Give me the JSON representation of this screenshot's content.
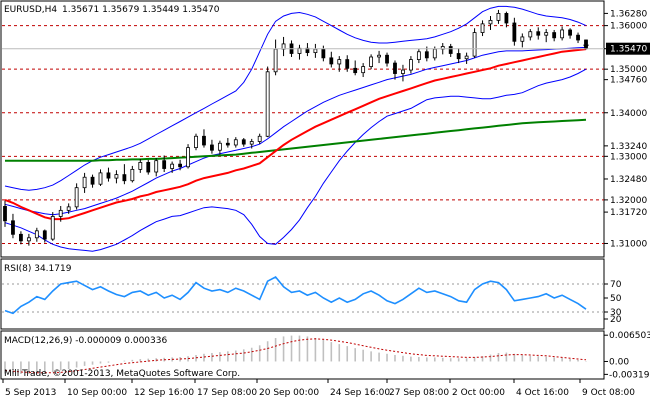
{
  "window": {
    "title_label": "EURUSD,H4",
    "ohlc_label": "1.35671 1.35679 1.35449 1.35470",
    "watermark": "Mill Trade, ©2001-2013, MetaQuotes Software Corp."
  },
  "colors": {
    "background": "#ffffff",
    "bollinger": "#0000ff",
    "ema_short": "#ff0000",
    "ema_long": "#008000",
    "level_line": "#c00000",
    "rsi": "#1e8fff",
    "macd_hist": "#c0c0c0",
    "macd_signal": "#c00000",
    "price_marker": "#000000"
  },
  "chart_data": [
    {
      "type": "candlestick",
      "title": "EURUSD,H4",
      "price_labels": [
        "1.36280",
        "1.36000",
        "1.35470",
        "1.35000",
        "1.34760",
        "1.34000",
        "1.33240",
        "1.33000",
        "1.32480",
        "1.32000",
        "1.31720",
        "1.31000"
      ],
      "current_price": 1.3547,
      "horizontal_levels": [
        1.36,
        1.35,
        1.34,
        1.33,
        1.32,
        1.31
      ],
      "ylim": [
        1.3085,
        1.3645
      ],
      "x_labels": [
        "5 Sep 2013",
        "10 Sep 00:00",
        "12 Sep 16:00",
        "17 Sep 08:00",
        "20 Sep 00:00",
        "24 Sep 16:00",
        "27 Sep 08:00",
        "2 Oct 00:00",
        "4 Oct 16:00",
        "9 Oct 08:00"
      ],
      "candles": [
        [
          1.3185,
          1.3198,
          1.3138,
          1.3152
        ],
        [
          1.3152,
          1.3168,
          1.3112,
          1.3121
        ],
        [
          1.3121,
          1.3128,
          1.3098,
          1.3106
        ],
        [
          1.3106,
          1.3122,
          1.3095,
          1.3113
        ],
        [
          1.3113,
          1.3136,
          1.3104,
          1.3129
        ],
        [
          1.3129,
          1.3132,
          1.3102,
          1.311
        ],
        [
          1.311,
          1.3172,
          1.3106,
          1.3162
        ],
        [
          1.3162,
          1.3186,
          1.315,
          1.3176
        ],
        [
          1.3176,
          1.3192,
          1.3168,
          1.3184
        ],
        [
          1.3184,
          1.3238,
          1.3178,
          1.3228
        ],
        [
          1.3228,
          1.3262,
          1.3216,
          1.3252
        ],
        [
          1.3252,
          1.3258,
          1.3228,
          1.3236
        ],
        [
          1.3236,
          1.327,
          1.3232,
          1.3262
        ],
        [
          1.3262,
          1.3274,
          1.3242,
          1.325
        ],
        [
          1.325,
          1.3268,
          1.3238,
          1.3258
        ],
        [
          1.3258,
          1.3282,
          1.3236,
          1.3244
        ],
        [
          1.3244,
          1.3278,
          1.324,
          1.327
        ],
        [
          1.327,
          1.3294,
          1.3262,
          1.3286
        ],
        [
          1.3286,
          1.3292,
          1.3258,
          1.3264
        ],
        [
          1.3264,
          1.3296,
          1.3254,
          1.329
        ],
        [
          1.329,
          1.3302,
          1.3264,
          1.3272
        ],
        [
          1.3272,
          1.3288,
          1.3262,
          1.3282
        ],
        [
          1.3282,
          1.3292,
          1.3268,
          1.3276
        ],
        [
          1.3276,
          1.3328,
          1.3272,
          1.332
        ],
        [
          1.332,
          1.3352,
          1.3314,
          1.3346
        ],
        [
          1.3346,
          1.3362,
          1.332,
          1.3326
        ],
        [
          1.3326,
          1.3338,
          1.3306,
          1.3314
        ],
        [
          1.3314,
          1.3336,
          1.3304,
          1.333
        ],
        [
          1.333,
          1.3342,
          1.332,
          1.3326
        ],
        [
          1.3326,
          1.3344,
          1.332,
          1.3338
        ],
        [
          1.3338,
          1.3342,
          1.3322,
          1.3328
        ],
        [
          1.3328,
          1.334,
          1.3318,
          1.3334
        ],
        [
          1.3334,
          1.3352,
          1.3328,
          1.3346
        ],
        [
          1.3346,
          1.3506,
          1.3344,
          1.3494
        ],
        [
          1.3494,
          1.3568,
          1.3486,
          1.3546
        ],
        [
          1.3546,
          1.3574,
          1.353,
          1.3558
        ],
        [
          1.3558,
          1.3566,
          1.3528,
          1.3536
        ],
        [
          1.3536,
          1.3556,
          1.3522,
          1.3548
        ],
        [
          1.3548,
          1.356,
          1.353,
          1.3538
        ],
        [
          1.3538,
          1.3558,
          1.3526,
          1.3546
        ],
        [
          1.3546,
          1.3554,
          1.3518,
          1.3526
        ],
        [
          1.3526,
          1.354,
          1.3504,
          1.3512
        ],
        [
          1.3512,
          1.353,
          1.3494,
          1.3522
        ],
        [
          1.3522,
          1.3532,
          1.3494,
          1.3502
        ],
        [
          1.3502,
          1.352,
          1.3486,
          1.3492
        ],
        [
          1.3492,
          1.3514,
          1.3482,
          1.3506
        ],
        [
          1.3506,
          1.3534,
          1.35,
          1.3528
        ],
        [
          1.3528,
          1.3542,
          1.3514,
          1.3532
        ],
        [
          1.3532,
          1.3538,
          1.3506,
          1.3514
        ],
        [
          1.3514,
          1.352,
          1.3476,
          1.349
        ],
        [
          1.349,
          1.351,
          1.3472,
          1.3498
        ],
        [
          1.3498,
          1.353,
          1.349,
          1.3522
        ],
        [
          1.3522,
          1.3546,
          1.3514,
          1.354
        ],
        [
          1.354,
          1.3552,
          1.3518,
          1.3526
        ],
        [
          1.3526,
          1.3552,
          1.352,
          1.3546
        ],
        [
          1.3546,
          1.356,
          1.3534,
          1.3552
        ],
        [
          1.3552,
          1.3558,
          1.3528,
          1.3536
        ],
        [
          1.3536,
          1.3548,
          1.3514,
          1.3524
        ],
        [
          1.3524,
          1.3538,
          1.3512,
          1.353
        ],
        [
          1.353,
          1.3594,
          1.3526,
          1.3584
        ],
        [
          1.3584,
          1.3612,
          1.3576,
          1.3604
        ],
        [
          1.3604,
          1.3622,
          1.359,
          1.3612
        ],
        [
          1.3612,
          1.3636,
          1.3604,
          1.3628
        ],
        [
          1.3628,
          1.3632,
          1.3596,
          1.3606
        ],
        [
          1.3606,
          1.3618,
          1.3554,
          1.3564
        ],
        [
          1.3564,
          1.3582,
          1.355,
          1.3574
        ],
        [
          1.3574,
          1.3592,
          1.3566,
          1.3586
        ],
        [
          1.3586,
          1.3596,
          1.3568,
          1.3578
        ],
        [
          1.3578,
          1.3592,
          1.3562,
          1.3584
        ],
        [
          1.3584,
          1.359,
          1.3564,
          1.3572
        ],
        [
          1.3572,
          1.3598,
          1.3566,
          1.359
        ],
        [
          1.359,
          1.3594,
          1.357,
          1.3578
        ],
        [
          1.3578,
          1.3584,
          1.356,
          1.3567
        ],
        [
          1.3567,
          1.3568,
          1.3545,
          1.3547
        ]
      ],
      "bollinger_middle": [
        1.319,
        1.3185,
        1.318,
        1.3175,
        1.3172,
        1.3168,
        1.3166,
        1.3168,
        1.3172,
        1.3176,
        1.318,
        1.3186,
        1.3192,
        1.3198,
        1.3204,
        1.3212,
        1.322,
        1.323,
        1.324,
        1.325,
        1.3258,
        1.3266,
        1.3272,
        1.328,
        1.3288,
        1.3296,
        1.3302,
        1.3306,
        1.331,
        1.3314,
        1.3318,
        1.3322,
        1.3328,
        1.334,
        1.3354,
        1.3368,
        1.338,
        1.3392,
        1.3404,
        1.3414,
        1.3424,
        1.3432,
        1.344,
        1.3446,
        1.3452,
        1.3458,
        1.3464,
        1.347,
        1.3476,
        1.348,
        1.3484,
        1.3488,
        1.3494,
        1.35,
        1.3504,
        1.3508,
        1.3512,
        1.3516,
        1.352,
        1.3526,
        1.3532,
        1.3536,
        1.354,
        1.3542,
        1.3542,
        1.3542,
        1.3543,
        1.3544,
        1.3545,
        1.3546,
        1.3547,
        1.3548,
        1.3549,
        1.355
      ],
      "bollinger_upper": [
        1.3232,
        1.3228,
        1.3224,
        1.3222,
        1.3224,
        1.3228,
        1.3234,
        1.3244,
        1.3256,
        1.3268,
        1.328,
        1.329,
        1.3298,
        1.3304,
        1.331,
        1.3316,
        1.3322,
        1.333,
        1.334,
        1.335,
        1.336,
        1.337,
        1.338,
        1.339,
        1.34,
        1.341,
        1.342,
        1.343,
        1.344,
        1.345,
        1.347,
        1.35,
        1.354,
        1.358,
        1.361,
        1.3622,
        1.3628,
        1.363,
        1.3626,
        1.362,
        1.361,
        1.36,
        1.359,
        1.358,
        1.3572,
        1.3566,
        1.3562,
        1.356,
        1.356,
        1.3562,
        1.3564,
        1.3566,
        1.3568,
        1.357,
        1.3574,
        1.358,
        1.3586,
        1.3594,
        1.3604,
        1.3618,
        1.3632,
        1.364,
        1.3644,
        1.3644,
        1.3642,
        1.3638,
        1.3632,
        1.3626,
        1.3622,
        1.362,
        1.3618,
        1.3614,
        1.3608,
        1.36
      ],
      "bollinger_lower": [
        1.3148,
        1.3142,
        1.3136,
        1.3128,
        1.312,
        1.3108,
        1.3098,
        1.3092,
        1.3088,
        1.3086,
        1.3084,
        1.3082,
        1.3086,
        1.3092,
        1.3098,
        1.3108,
        1.3118,
        1.313,
        1.314,
        1.315,
        1.3156,
        1.3162,
        1.3164,
        1.317,
        1.3176,
        1.3182,
        1.3184,
        1.3182,
        1.318,
        1.3176,
        1.3166,
        1.3144,
        1.3116,
        1.31,
        1.3098,
        1.3114,
        1.3132,
        1.3154,
        1.3182,
        1.3208,
        1.3238,
        1.3264,
        1.329,
        1.3312,
        1.3332,
        1.335,
        1.3366,
        1.338,
        1.3392,
        1.3398,
        1.3404,
        1.341,
        1.342,
        1.343,
        1.3434,
        1.3436,
        1.3438,
        1.3438,
        1.3436,
        1.3434,
        1.3432,
        1.3432,
        1.3436,
        1.344,
        1.3442,
        1.3446,
        1.3454,
        1.3462,
        1.3468,
        1.3472,
        1.3476,
        1.3482,
        1.349,
        1.35
      ],
      "ema_short": [
        1.32,
        1.3193,
        1.3184,
        1.3176,
        1.3168,
        1.316,
        1.3156,
        1.3156,
        1.3158,
        1.3164,
        1.317,
        1.3176,
        1.3182,
        1.3188,
        1.3194,
        1.3198,
        1.3202,
        1.3208,
        1.3212,
        1.3218,
        1.3222,
        1.3226,
        1.323,
        1.3236,
        1.3244,
        1.325,
        1.3254,
        1.3258,
        1.3262,
        1.3268,
        1.3272,
        1.3278,
        1.3284,
        1.3298,
        1.3312,
        1.3326,
        1.3338,
        1.3348,
        1.3358,
        1.3368,
        1.3376,
        1.3384,
        1.3392,
        1.34,
        1.3408,
        1.3416,
        1.3424,
        1.3432,
        1.3438,
        1.3444,
        1.345,
        1.3456,
        1.3462,
        1.3468,
        1.3474,
        1.3478,
        1.3482,
        1.3486,
        1.349,
        1.3494,
        1.3498,
        1.3502,
        1.3508,
        1.3512,
        1.3516,
        1.352,
        1.3524,
        1.3528,
        1.3532,
        1.3536,
        1.354,
        1.3542,
        1.3544,
        1.3546
      ],
      "ema_long": [
        1.329,
        1.329,
        1.329,
        1.329,
        1.329,
        1.329,
        1.329,
        1.329,
        1.329,
        1.329,
        1.329,
        1.329,
        1.3291,
        1.3291,
        1.3292,
        1.3292,
        1.3293,
        1.3293,
        1.3294,
        1.3294,
        1.3295,
        1.3296,
        1.3297,
        1.3298,
        1.3299,
        1.33,
        1.3301,
        1.3302,
        1.3303,
        1.3304,
        1.3306,
        1.3308,
        1.331,
        1.3312,
        1.3314,
        1.3316,
        1.3318,
        1.332,
        1.3322,
        1.3324,
        1.3326,
        1.3328,
        1.333,
        1.3332,
        1.3334,
        1.3336,
        1.3338,
        1.334,
        1.3342,
        1.3344,
        1.3346,
        1.3348,
        1.335,
        1.3352,
        1.3354,
        1.3356,
        1.3358,
        1.336,
        1.3362,
        1.3364,
        1.3366,
        1.3368,
        1.337,
        1.3372,
        1.3374,
        1.3376,
        1.3377,
        1.3378,
        1.3379,
        1.338,
        1.3381,
        1.3382,
        1.3383,
        1.3384
      ]
    },
    {
      "type": "line",
      "title": "RSI(8) 34.1719",
      "tick_labels": [
        "70",
        "50",
        "30",
        "20"
      ],
      "ylim": [
        10,
        100
      ],
      "values": [
        32,
        28,
        38,
        44,
        52,
        48,
        60,
        70,
        72,
        74,
        68,
        62,
        66,
        60,
        55,
        52,
        58,
        60,
        54,
        58,
        50,
        54,
        48,
        58,
        72,
        64,
        60,
        62,
        58,
        64,
        60,
        54,
        48,
        74,
        80,
        66,
        58,
        60,
        54,
        58,
        50,
        44,
        50,
        44,
        48,
        56,
        60,
        54,
        46,
        42,
        48,
        56,
        64,
        58,
        60,
        56,
        52,
        46,
        44,
        62,
        70,
        74,
        72,
        62,
        46,
        48,
        50,
        52,
        56,
        50,
        54,
        48,
        42,
        34
      ]
    },
    {
      "type": "histogram",
      "title": "MACD(12,26,9) -0.000009 0.000336",
      "tick_labels": [
        "0.006503",
        "0.00",
        "-0.003198"
      ],
      "ylim": [
        -0.0036,
        0.0068
      ],
      "histogram": [
        -0.003,
        -0.003,
        -0.0031,
        -0.0031,
        -0.003,
        -0.0029,
        -0.0026,
        -0.0022,
        -0.0019,
        -0.0015,
        -0.0011,
        -0.0008,
        -0.0005,
        -0.0003,
        0.0,
        0.0002,
        0.0004,
        0.0006,
        0.0007,
        0.0008,
        0.0009,
        0.001,
        0.0011,
        0.0013,
        0.0016,
        0.0019,
        0.0021,
        0.0023,
        0.0025,
        0.0027,
        0.003,
        0.0034,
        0.004,
        0.005,
        0.0058,
        0.0062,
        0.0064,
        0.0064,
        0.0062,
        0.0058,
        0.0054,
        0.0048,
        0.0043,
        0.0038,
        0.0033,
        0.0029,
        0.0025,
        0.0022,
        0.0019,
        0.0016,
        0.0014,
        0.0012,
        0.0011,
        0.001,
        0.001,
        0.0009,
        0.0008,
        0.0008,
        0.0008,
        0.001,
        0.0013,
        0.0017,
        0.0021,
        0.0022,
        0.0019,
        0.0016,
        0.0014,
        0.0013,
        0.0012,
        0.001,
        0.0009,
        0.0006,
        0.0004,
        0.0001
      ],
      "signal": [
        -0.0022,
        -0.0024,
        -0.0026,
        -0.0027,
        -0.0028,
        -0.0028,
        -0.0028,
        -0.0027,
        -0.0025,
        -0.0023,
        -0.002,
        -0.0017,
        -0.0014,
        -0.0011,
        -0.0008,
        -0.0005,
        -0.0003,
        -0.0001,
        0.0001,
        0.0003,
        0.0004,
        0.0005,
        0.0006,
        0.0007,
        0.0009,
        0.0011,
        0.0013,
        0.0015,
        0.0017,
        0.0019,
        0.0021,
        0.0024,
        0.0028,
        0.0032,
        0.0038,
        0.0044,
        0.0049,
        0.0053,
        0.0055,
        0.0056,
        0.0055,
        0.0053,
        0.005,
        0.0047,
        0.0043,
        0.0039,
        0.0035,
        0.0031,
        0.0028,
        0.0025,
        0.0022,
        0.0019,
        0.0017,
        0.0015,
        0.0014,
        0.0013,
        0.0012,
        0.0011,
        0.001,
        0.001,
        0.0011,
        0.0012,
        0.0014,
        0.0016,
        0.0017,
        0.0017,
        0.0016,
        0.0015,
        0.0014,
        0.0012,
        0.001,
        0.0008,
        0.0006,
        0.0004
      ]
    }
  ]
}
